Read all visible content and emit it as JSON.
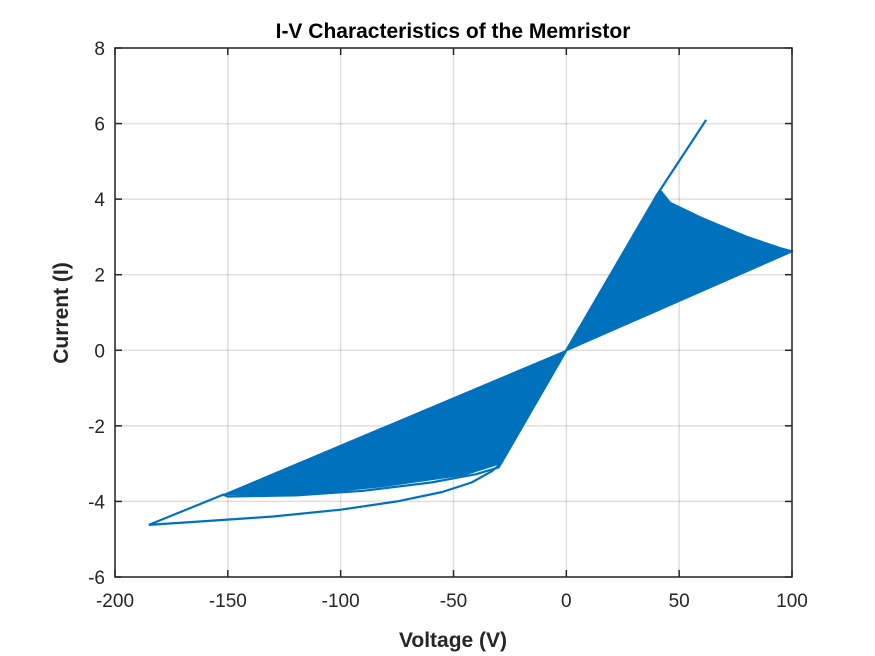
{
  "chart_data": {
    "type": "line",
    "title": "I-V Characteristics of the Memristor",
    "xlabel": "Voltage (V)",
    "ylabel": "Current (I)",
    "xlim": [
      -200,
      100
    ],
    "ylim": [
      -6,
      8
    ],
    "x_ticks": [
      -200,
      -150,
      -100,
      -50,
      0,
      50,
      100
    ],
    "y_ticks": [
      -6,
      -4,
      -2,
      0,
      2,
      4,
      6,
      8
    ],
    "x_tick_labels": [
      "-200",
      "-150",
      "-100",
      "-50",
      "0",
      "50",
      "100"
    ],
    "y_tick_labels": [
      "-6",
      "-4",
      "-2",
      "0",
      "2",
      "4",
      "6",
      "8"
    ],
    "grid": true,
    "legend": "none",
    "series_color": "#0072BD",
    "series": [
      {
        "points": [
          [
            -185,
            -4.62
          ],
          [
            -160,
            -4.52
          ],
          [
            -130,
            -4.4
          ],
          [
            -100,
            -4.22
          ],
          [
            -75,
            -4.0
          ],
          [
            -55,
            -3.75
          ],
          [
            -42,
            -3.5
          ],
          [
            -33,
            -3.2
          ],
          [
            -29,
            -3.0
          ],
          [
            0,
            0
          ],
          [
            40,
            4.1
          ],
          [
            62,
            6.1
          ]
        ]
      },
      {
        "points": [
          [
            -185,
            -4.62
          ],
          [
            -152,
            -3.82
          ],
          [
            -150,
            -3.87
          ],
          [
            -120,
            -3.84
          ],
          [
            -90,
            -3.72
          ],
          [
            -60,
            -3.5
          ],
          [
            -40,
            -3.28
          ],
          [
            -30,
            -3.1
          ],
          [
            0,
            0
          ],
          [
            42,
            4.2
          ],
          [
            46,
            3.9
          ],
          [
            60,
            3.5
          ],
          [
            80,
            3.0
          ],
          [
            95,
            2.7
          ],
          [
            100,
            2.62
          ],
          [
            0,
            0
          ]
        ]
      }
    ],
    "loop_envelope": {
      "negative_upper": [
        [
          0,
          0
        ],
        [
          -152,
          -3.82
        ]
      ],
      "negative_lower": [
        [
          0,
          0
        ],
        [
          -29,
          -3.0
        ],
        [
          -45,
          -3.3
        ],
        [
          -80,
          -3.6
        ],
        [
          -120,
          -3.85
        ],
        [
          -152,
          -3.82
        ]
      ],
      "positive_upper": [
        [
          0,
          0
        ],
        [
          42,
          4.2
        ]
      ],
      "positive_lower": [
        [
          0,
          0
        ],
        [
          100,
          2.62
        ]
      ],
      "positive_bulge": [
        [
          42,
          4.2
        ],
        [
          46,
          3.9
        ],
        [
          60,
          3.5
        ],
        [
          80,
          3.0
        ],
        [
          95,
          2.7
        ],
        [
          100,
          2.62
        ]
      ]
    }
  }
}
